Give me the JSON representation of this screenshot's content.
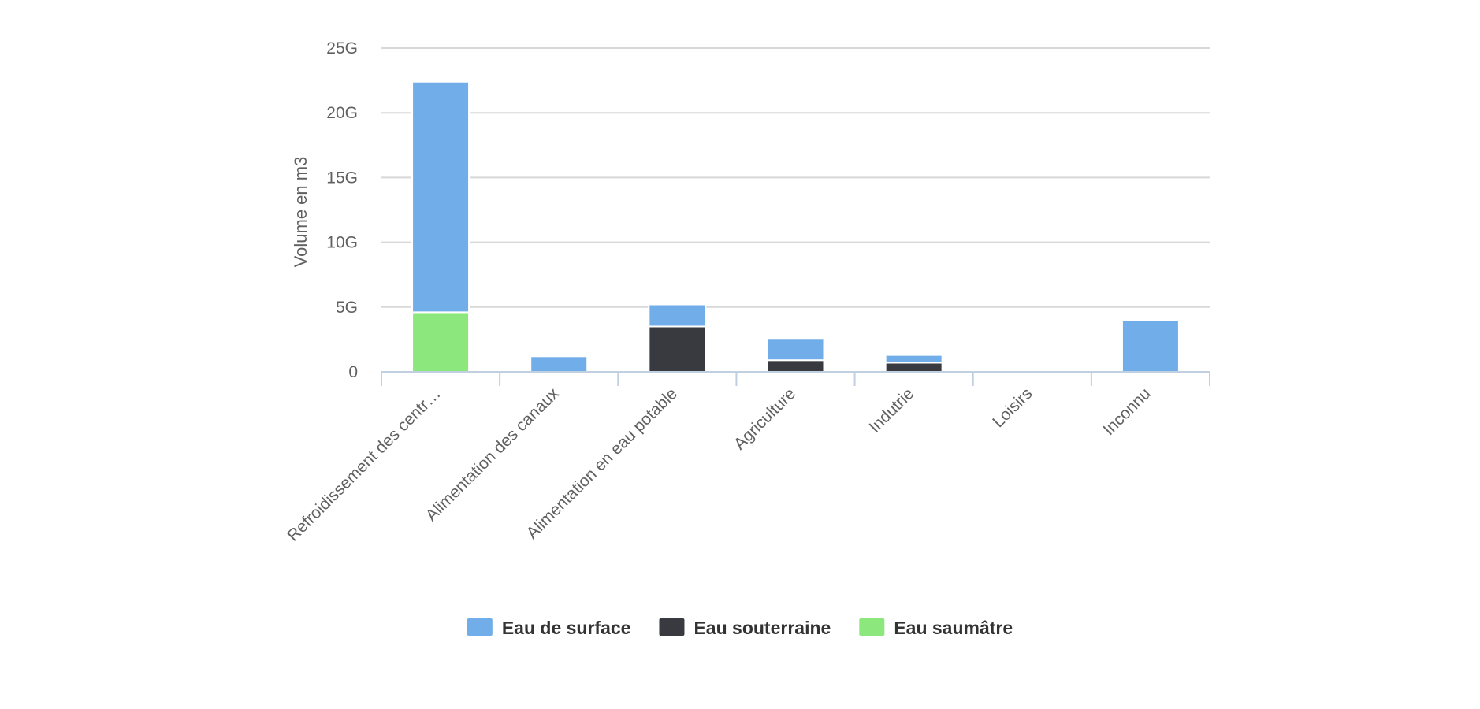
{
  "chart_data": {
    "type": "bar",
    "stacked": true,
    "title": "",
    "xlabel": "",
    "ylabel": "Volume en m3",
    "ylim": [
      0,
      25000000000
    ],
    "y_ticks": [
      {
        "value": 0,
        "label": "0"
      },
      {
        "value": 5000000000,
        "label": "5G"
      },
      {
        "value": 10000000000,
        "label": "10G"
      },
      {
        "value": 15000000000,
        "label": "15G"
      },
      {
        "value": 20000000000,
        "label": "20G"
      },
      {
        "value": 25000000000,
        "label": "25G"
      }
    ],
    "categories": [
      "Refroidissement des centr…",
      "Alimentation des canaux",
      "Alimentation en eau potable",
      "Agriculture",
      "Indutrie",
      "Loisirs",
      "Inconnu"
    ],
    "series": [
      {
        "name": "Eau de surface",
        "color": "#71ade9",
        "values": [
          17800000000,
          1200000000,
          1700000000,
          1700000000,
          600000000,
          0,
          4000000000
        ]
      },
      {
        "name": "Eau souterraine",
        "color": "#393a3f",
        "values": [
          0,
          0,
          3500000000,
          900000000,
          700000000,
          0,
          0
        ]
      },
      {
        "name": "Eau saumâtre",
        "color": "#8ce77c",
        "values": [
          4600000000,
          0,
          0,
          0,
          0,
          0,
          0
        ]
      }
    ],
    "stack_order_bottom_to_top": [
      "Eau saumâtre",
      "Eau souterraine",
      "Eau de surface"
    ],
    "grid": true,
    "legend_position": "bottom"
  }
}
